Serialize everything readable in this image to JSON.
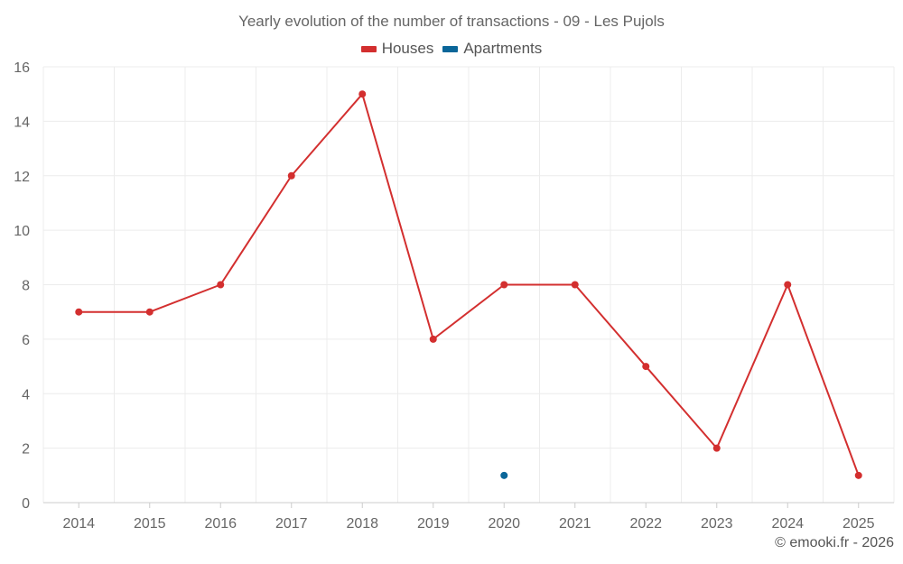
{
  "chart_data": {
    "type": "line",
    "title": "Yearly evolution of the number of transactions - 09 - Les Pujols",
    "x": [
      "2014",
      "2015",
      "2016",
      "2017",
      "2018",
      "2019",
      "2020",
      "2021",
      "2022",
      "2023",
      "2024",
      "2025"
    ],
    "series": [
      {
        "name": "Houses",
        "color": "#d32f2f",
        "values": [
          7,
          7,
          8,
          12,
          15,
          6,
          8,
          8,
          5,
          2,
          8,
          1
        ]
      },
      {
        "name": "Apartments",
        "color": "#0a6699",
        "values": [
          null,
          null,
          null,
          null,
          null,
          null,
          1,
          null,
          null,
          null,
          null,
          null
        ]
      }
    ],
    "ylim": [
      0,
      16
    ],
    "yticks": [
      0,
      2,
      4,
      6,
      8,
      10,
      12,
      14,
      16
    ],
    "xlabel": "",
    "ylabel": "",
    "grid": true,
    "legend": "top-center"
  },
  "credit": "© emooki.fr - 2026"
}
